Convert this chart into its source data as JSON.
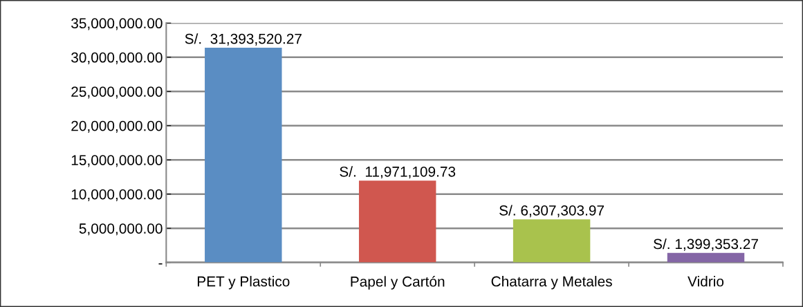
{
  "chart_data": {
    "type": "bar",
    "categories": [
      "PET y Plastico",
      "Papel y Cartón",
      "Chatarra y Metales",
      "Vidrio"
    ],
    "values": [
      31393520.27,
      11971109.73,
      6307303.97,
      1399353.27
    ],
    "colors": [
      "#5a8dc3",
      "#d0574f",
      "#a9c24d",
      "#8466a6"
    ],
    "value_labels": [
      "S/.  31,393,520.27",
      "S/.  11,971,109.73",
      "S/. 6,307,303.97",
      "S/. 1,399,353.27"
    ],
    "ylim": [
      0,
      35000000
    ],
    "yticks": [
      {
        "value": 0,
        "label": "-"
      },
      {
        "value": 5000000,
        "label": "5,000,000.00"
      },
      {
        "value": 10000000,
        "label": "10,000,000.00"
      },
      {
        "value": 15000000,
        "label": "15,000,000.00"
      },
      {
        "value": 20000000,
        "label": "20,000,000.00"
      },
      {
        "value": 25000000,
        "label": "25,000,000.00"
      },
      {
        "value": 30000000,
        "label": "30,000,000.00"
      },
      {
        "value": 35000000,
        "label": "35,000,000.00"
      }
    ],
    "grid": "y"
  }
}
